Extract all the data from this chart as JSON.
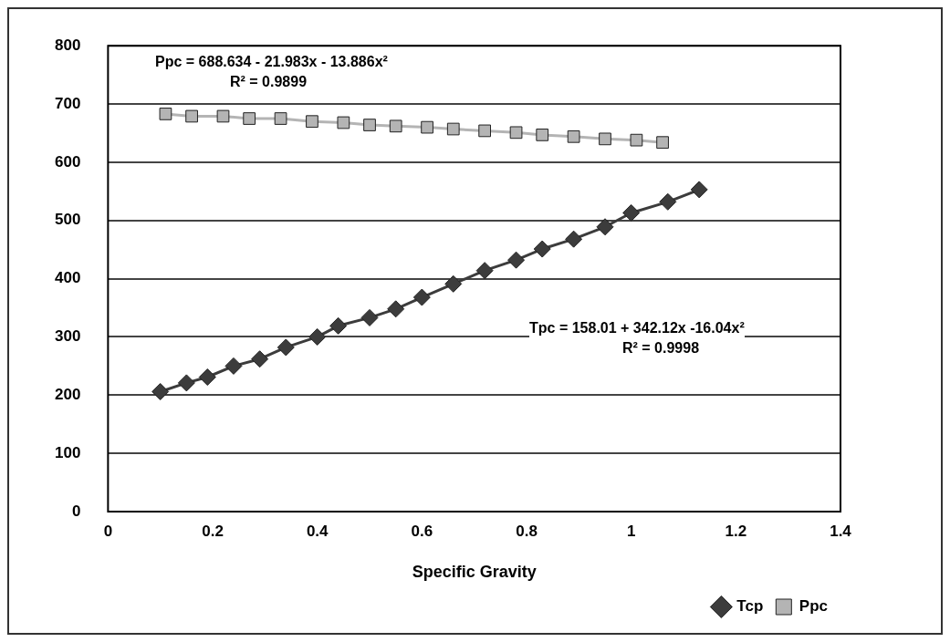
{
  "chart_data": {
    "type": "line",
    "xlabel": "Specific Gravity",
    "xlim": [
      0,
      1.4
    ],
    "xticks": [
      0,
      0.2,
      0.4,
      0.6,
      0.8,
      1,
      1.2,
      1.4
    ],
    "ylim": [
      0,
      800
    ],
    "yticks": [
      0,
      100,
      200,
      300,
      400,
      500,
      600,
      700,
      800
    ],
    "grid": "y",
    "legend": "bottom right",
    "line_style": "solid",
    "series": [
      {
        "name": "Tcp",
        "color": "#3c3c3c",
        "marker": "diamond",
        "x": [
          0.1,
          0.15,
          0.19,
          0.24,
          0.29,
          0.34,
          0.4,
          0.44,
          0.5,
          0.55,
          0.6,
          0.66,
          0.72,
          0.78,
          0.83,
          0.89,
          0.95,
          1.0,
          1.07,
          1.13
        ],
        "values": [
          206,
          221,
          231,
          250,
          262,
          282,
          300,
          319,
          333,
          348,
          368,
          391,
          414,
          432,
          451,
          468,
          489,
          513,
          532,
          553
        ]
      },
      {
        "name": "Ppc",
        "color": "#b4b4b4",
        "marker": "square",
        "x": [
          0.11,
          0.16,
          0.22,
          0.27,
          0.33,
          0.39,
          0.45,
          0.5,
          0.55,
          0.61,
          0.66,
          0.72,
          0.78,
          0.83,
          0.89,
          0.95,
          1.01,
          1.06
        ],
        "values": [
          683,
          679,
          679,
          675,
          675,
          670,
          668,
          664,
          662,
          660,
          657,
          654,
          651,
          647,
          644,
          640,
          638,
          634
        ]
      }
    ],
    "annotations": [
      "Ppc = 688.634 - 21.983x - 13.886x²",
      "R² = 0.9899",
      "Tpc = 158.01 + 342.12x -16.04x²",
      "R² = 0.9998"
    ]
  }
}
